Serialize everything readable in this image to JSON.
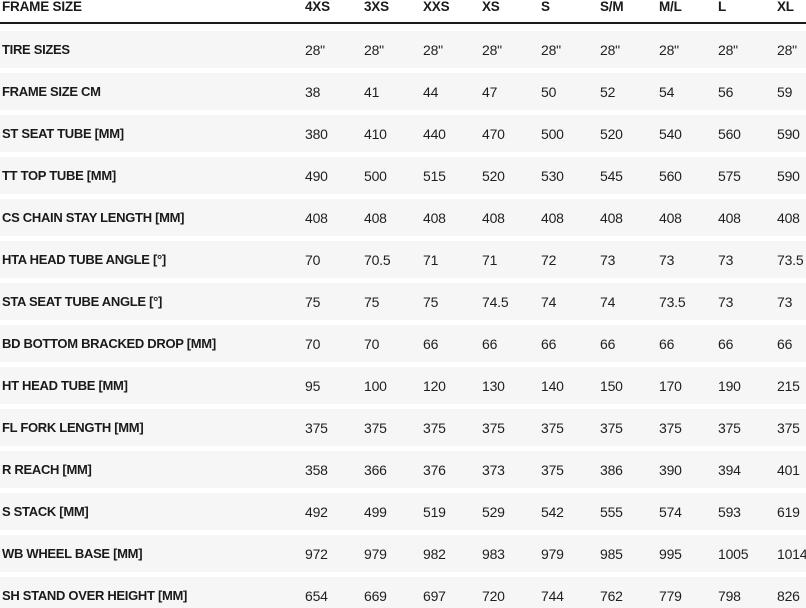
{
  "table": {
    "corner_label": "FRAME SIZE",
    "size_headers": [
      "4XS",
      "3XS",
      "XXS",
      "XS",
      "S",
      "S/M",
      "M/L",
      "L",
      "XL"
    ],
    "rows": [
      {
        "label": "TIRE SIZES",
        "values": [
          "28\"",
          "28\"",
          "28\"",
          "28\"",
          "28\"",
          "28\"",
          "28\"",
          "28\"",
          "28\""
        ]
      },
      {
        "label": "FRAME SIZE CM",
        "values": [
          "38",
          "41",
          "44",
          "47",
          "50",
          "52",
          "54",
          "56",
          "59"
        ]
      },
      {
        "label": "ST SEAT TUBE [MM]",
        "values": [
          "380",
          "410",
          "440",
          "470",
          "500",
          "520",
          "540",
          "560",
          "590"
        ]
      },
      {
        "label": "TT TOP TUBE [MM]",
        "values": [
          "490",
          "500",
          "515",
          "520",
          "530",
          "545",
          "560",
          "575",
          "590"
        ]
      },
      {
        "label": "CS CHAIN STAY LENGTH [MM]",
        "values": [
          "408",
          "408",
          "408",
          "408",
          "408",
          "408",
          "408",
          "408",
          "408"
        ]
      },
      {
        "label": "HTA HEAD TUBE ANGLE [°]",
        "values": [
          "70",
          "70.5",
          "71",
          "71",
          "72",
          "73",
          "73",
          "73",
          "73.5"
        ]
      },
      {
        "label": "STA SEAT TUBE ANGLE [°]",
        "values": [
          "75",
          "75",
          "75",
          "74.5",
          "74",
          "74",
          "73.5",
          "73",
          "73"
        ]
      },
      {
        "label": "BD BOTTOM BRACKED DROP [MM]",
        "values": [
          "70",
          "70",
          "66",
          "66",
          "66",
          "66",
          "66",
          "66",
          "66"
        ]
      },
      {
        "label": "HT HEAD TUBE [MM]",
        "values": [
          "95",
          "100",
          "120",
          "130",
          "140",
          "150",
          "170",
          "190",
          "215"
        ]
      },
      {
        "label": "FL FORK LENGTH [MM]",
        "values": [
          "375",
          "375",
          "375",
          "375",
          "375",
          "375",
          "375",
          "375",
          "375"
        ]
      },
      {
        "label": "R REACH [MM]",
        "values": [
          "358",
          "366",
          "376",
          "373",
          "375",
          "386",
          "390",
          "394",
          "401"
        ]
      },
      {
        "label": "S STACK [MM]",
        "values": [
          "492",
          "499",
          "519",
          "529",
          "542",
          "555",
          "574",
          "593",
          "619"
        ]
      },
      {
        "label": "WB WHEEL BASE [MM]",
        "values": [
          "972",
          "979",
          "982",
          "983",
          "979",
          "985",
          "995",
          "1005",
          "1014"
        ]
      },
      {
        "label": "SH STAND OVER HEIGHT [MM]",
        "values": [
          "654",
          "669",
          "697",
          "720",
          "744",
          "762",
          "779",
          "798",
          "826"
        ]
      }
    ],
    "colors": {
      "band_bg": "#f6f6f6",
      "text": "#1a1a1a",
      "value_text": "#1f1f1f",
      "header_rule": "#1a1a1a",
      "page_bg": "#ffffff"
    }
  }
}
